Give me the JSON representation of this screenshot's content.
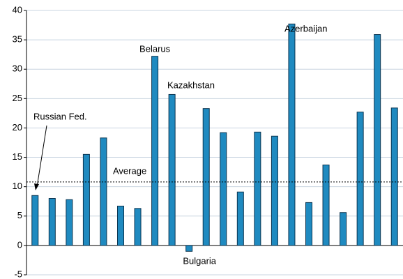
{
  "chart_data": {
    "type": "bar",
    "categories": [
      null,
      null,
      null,
      null,
      null,
      null,
      null,
      null,
      null,
      null,
      null,
      null,
      null,
      null,
      null,
      null,
      null,
      null,
      null,
      null,
      null,
      null
    ],
    "values": [
      8.5,
      8.0,
      7.8,
      15.5,
      18.3,
      6.7,
      6.3,
      32.2,
      25.7,
      -1.0,
      23.3,
      19.2,
      9.1,
      19.3,
      18.6,
      37.7,
      7.3,
      13.7,
      5.6,
      22.7,
      35.9,
      23.4
    ],
    "color": "#1f8ac0",
    "ylim": [
      -5,
      40
    ],
    "yticks": [
      -5,
      0,
      5,
      10,
      15,
      20,
      25,
      30,
      35,
      40
    ],
    "grid": true,
    "average": 10.8,
    "average_label": "Average",
    "annotations": [
      {
        "text": "Russian Fed."
      },
      {
        "text": "Belarus"
      },
      {
        "text": "Kazakhstan"
      },
      {
        "text": "Bulgaria"
      },
      {
        "text": "Azerbaijan"
      }
    ]
  }
}
